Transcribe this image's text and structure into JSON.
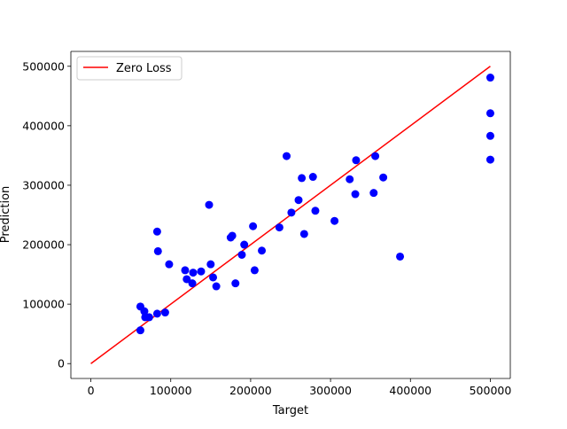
{
  "chart_data": {
    "type": "scatter",
    "title": "",
    "xlabel": "Target",
    "ylabel": "Prediction",
    "xlim": [
      -25000,
      525000
    ],
    "ylim": [
      -25000,
      525000
    ],
    "x_ticks": [
      0,
      100000,
      200000,
      300000,
      400000,
      500000
    ],
    "x_tick_labels": [
      "0",
      "100000",
      "200000",
      "300000",
      "400000",
      "500000"
    ],
    "y_ticks": [
      0,
      100000,
      200000,
      300000,
      400000,
      500000
    ],
    "y_tick_labels": [
      "0",
      "100000",
      "200000",
      "300000",
      "400000",
      "500000"
    ],
    "grid": false,
    "legend": {
      "position": "top-left",
      "entries": [
        "Zero Loss"
      ]
    },
    "line": {
      "name": "Zero Loss",
      "color": "#ff0000",
      "x": [
        0,
        500000
      ],
      "y": [
        0,
        500000
      ]
    },
    "points_color": "#0000ff",
    "points": [
      [
        62000,
        96000
      ],
      [
        67000,
        88000
      ],
      [
        68000,
        78000
      ],
      [
        73000,
        78000
      ],
      [
        62000,
        56000
      ],
      [
        83000,
        84000
      ],
      [
        93000,
        86000
      ],
      [
        83000,
        222000
      ],
      [
        84000,
        189000
      ],
      [
        98000,
        167000
      ],
      [
        118000,
        157000
      ],
      [
        120000,
        142000
      ],
      [
        127000,
        135000
      ],
      [
        128000,
        153000
      ],
      [
        138000,
        155000
      ],
      [
        148000,
        267000
      ],
      [
        150000,
        167000
      ],
      [
        153000,
        145000
      ],
      [
        157000,
        130000
      ],
      [
        175000,
        212000
      ],
      [
        177000,
        215000
      ],
      [
        181000,
        135000
      ],
      [
        189000,
        183000
      ],
      [
        192000,
        200000
      ],
      [
        203000,
        231000
      ],
      [
        205000,
        157000
      ],
      [
        214000,
        190000
      ],
      [
        236000,
        229000
      ],
      [
        245000,
        349000
      ],
      [
        251000,
        254000
      ],
      [
        260000,
        275000
      ],
      [
        264000,
        312000
      ],
      [
        267000,
        218000
      ],
      [
        278000,
        314000
      ],
      [
        281000,
        257000
      ],
      [
        305000,
        240000
      ],
      [
        324000,
        310000
      ],
      [
        331000,
        285000
      ],
      [
        332000,
        342000
      ],
      [
        354000,
        287000
      ],
      [
        356000,
        349000
      ],
      [
        366000,
        313000
      ],
      [
        387000,
        180000
      ],
      [
        500000,
        481000
      ],
      [
        500000,
        421000
      ],
      [
        500000,
        383000
      ],
      [
        500000,
        343000
      ]
    ]
  }
}
